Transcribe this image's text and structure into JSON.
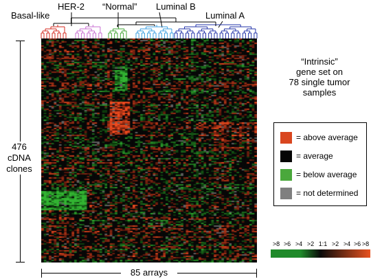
{
  "subtypes": [
    {
      "label": "Basal-like",
      "color": "#d42a1f"
    },
    {
      "label": "HER-2",
      "color": "#c86fd2"
    },
    {
      "label": "“Normal”",
      "color": "#42a534"
    },
    {
      "label": "Luminal B",
      "color": "#3a9ee0"
    },
    {
      "label": "Luminal A",
      "color": "#2233aa"
    }
  ],
  "annotation": {
    "line1": "“Intrinsic”",
    "line2": "gene set on",
    "line3": "78 single tumor",
    "line4": "samples"
  },
  "y_label": {
    "line1": "476 cDNA",
    "line2": "clones"
  },
  "x_label": "85 arrays",
  "legend": [
    {
      "label": "= above average",
      "color": "#d9461f"
    },
    {
      "label": "= average",
      "color": "#050505"
    },
    {
      "label": "= below average",
      "color": "#4aa83c"
    },
    {
      "label": "= not determined",
      "color": "#7f7f7f"
    }
  ],
  "color_scale": {
    "labels": [
      ">8",
      ">6",
      ">4",
      ">2",
      "1:1",
      ">2",
      ">4",
      ">6",
      ">8"
    ],
    "low_color": "#1f8a2a",
    "mid_color": "#0a0a0a",
    "high_color": "#e8521f"
  },
  "heatmap": {
    "n_arrays": 85,
    "n_clones": 476,
    "colors": {
      "above": "#d9461f",
      "average": "#050505",
      "below": "#3fa83a",
      "nd": "#6e6e6e"
    }
  }
}
